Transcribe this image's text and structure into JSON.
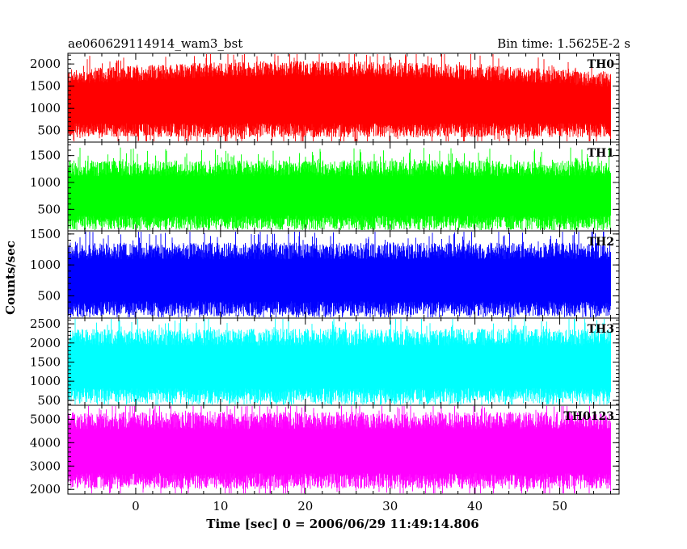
{
  "chart_data": {
    "type": "line",
    "title": "ae060629114914_wam3_bst",
    "bin_time": "Bin time: 1.5625E-2 s",
    "xlabel": "Time [sec] 0 = 2006/06/29 11:49:14.806",
    "ylabel": "Counts/sec",
    "xlim": [
      -8,
      57
    ],
    "x_data_range": [
      -8,
      56
    ],
    "x_ticks": [
      0,
      10,
      20,
      30,
      40,
      50
    ],
    "panels": [
      {
        "name": "TH0",
        "color": "#ff0000",
        "ylim": [
          240,
          2240
        ],
        "y_ticks": [
          500,
          1000,
          1500,
          2000
        ],
        "mean": 1060,
        "low": 420,
        "high": 2000
      },
      {
        "name": "TH1",
        "color": "#00ff00",
        "ylim": [
          100,
          1750
        ],
        "y_ticks": [
          500,
          1000,
          1500
        ],
        "mean": 720,
        "low": 170,
        "high": 1500
      },
      {
        "name": "TH2",
        "color": "#0000ff",
        "ylim": [
          140,
          1550
        ],
        "y_ticks": [
          500,
          1000,
          1500
        ],
        "mean": 720,
        "low": 220,
        "high": 1450
      },
      {
        "name": "TH3",
        "color": "#00ffff",
        "ylim": [
          370,
          2650
        ],
        "y_ticks": [
          500,
          1000,
          1500,
          2000,
          2500
        ],
        "mean": 1320,
        "low": 480,
        "high": 2500
      },
      {
        "name": "TH0123",
        "color": "#ff00ff",
        "ylim": [
          1800,
          5600
        ],
        "y_ticks": [
          2000,
          3000,
          4000,
          5000
        ],
        "mean": 3550,
        "low": 2000,
        "high": 5400
      }
    ]
  }
}
